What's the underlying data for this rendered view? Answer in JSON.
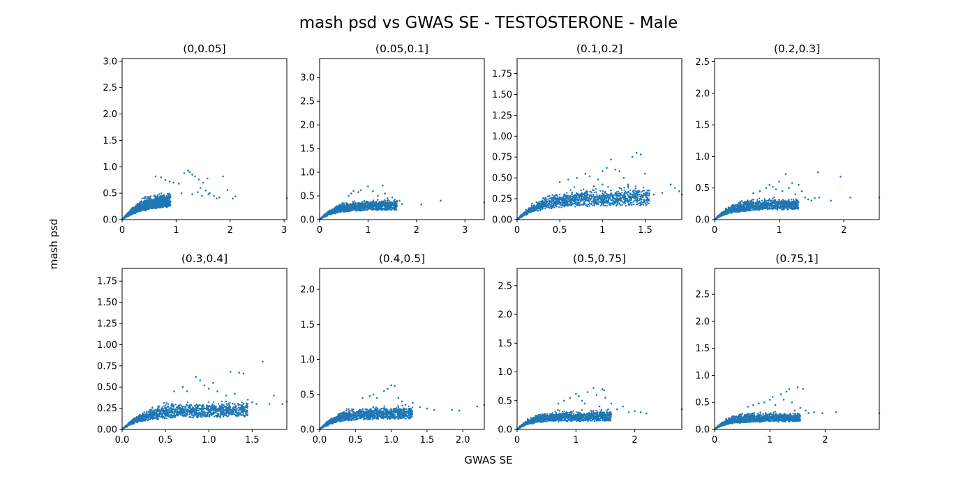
{
  "figure": {
    "title": "mash psd vs GWAS SE - TESTOSTERONE - Male",
    "xlabel": "GWAS SE",
    "ylabel": "mash psd"
  },
  "colors": {
    "points": "#1f77b4"
  },
  "chart_data": [
    {
      "type": "scatter",
      "title": "(0,0.05]",
      "xlim": [
        0,
        3.05
      ],
      "ylim": [
        0,
        3.05
      ],
      "xticks": [
        0,
        1,
        2,
        3
      ],
      "xtick_labels": [
        "0",
        "1",
        "2",
        "3"
      ],
      "yticks": [
        0,
        0.5,
        1,
        1.5,
        2,
        2.5,
        3
      ],
      "ytick_labels": [
        "0.0",
        "0.5",
        "1.0",
        "1.5",
        "2.0",
        "2.5",
        "3.0"
      ],
      "bulk": {
        "xmax": 0.9,
        "ysat": 0.48,
        "spread": 0.16
      },
      "points": [
        [
          0.62,
          0.82
        ],
        [
          0.72,
          0.8
        ],
        [
          0.8,
          0.75
        ],
        [
          0.88,
          0.72
        ],
        [
          0.95,
          0.7
        ],
        [
          1.05,
          0.68
        ],
        [
          1.15,
          0.88
        ],
        [
          1.22,
          0.93
        ],
        [
          1.25,
          0.9
        ],
        [
          1.3,
          0.85
        ],
        [
          1.35,
          0.82
        ],
        [
          1.42,
          0.76
        ],
        [
          1.5,
          0.7
        ],
        [
          1.58,
          0.78
        ],
        [
          1.45,
          0.6
        ],
        [
          1.55,
          0.55
        ],
        [
          1.62,
          0.5
        ],
        [
          1.7,
          0.45
        ],
        [
          1.8,
          0.42
        ],
        [
          1.87,
          0.82
        ],
        [
          1.95,
          0.56
        ],
        [
          2.05,
          0.4
        ],
        [
          2.1,
          0.44
        ],
        [
          3.05,
          0.41
        ],
        [
          1.1,
          0.5
        ],
        [
          1.3,
          0.48
        ],
        [
          1.48,
          0.45
        ],
        [
          1.4,
          0.52
        ],
        [
          1.6,
          0.48
        ],
        [
          1.75,
          0.4
        ]
      ]
    },
    {
      "type": "scatter",
      "title": "(0.05,0.1]",
      "xlim": [
        0,
        3.4
      ],
      "ylim": [
        0,
        3.4
      ],
      "xticks": [
        0,
        1,
        2,
        3
      ],
      "xtick_labels": [
        "0",
        "1",
        "2",
        "3"
      ],
      "yticks": [
        0,
        0.5,
        1,
        1.5,
        2,
        2.5,
        3
      ],
      "ytick_labels": [
        "0.0",
        "0.5",
        "1.0",
        "1.5",
        "2.0",
        "2.5",
        "3.0"
      ],
      "bulk": {
        "xmax": 1.6,
        "ysat": 0.36,
        "spread": 0.09
      },
      "points": [
        [
          0.6,
          0.5
        ],
        [
          0.65,
          0.55
        ],
        [
          0.7,
          0.6
        ],
        [
          0.8,
          0.58
        ],
        [
          0.85,
          0.62
        ],
        [
          1.0,
          0.7
        ],
        [
          1.1,
          0.6
        ],
        [
          1.2,
          0.5
        ],
        [
          1.3,
          0.72
        ],
        [
          1.35,
          0.55
        ],
        [
          1.5,
          0.47
        ],
        [
          1.65,
          0.4
        ],
        [
          1.7,
          0.33
        ],
        [
          2.1,
          0.32
        ],
        [
          2.5,
          0.4
        ],
        [
          3.4,
          0.36
        ],
        [
          1.2,
          0.42
        ],
        [
          1.4,
          0.45
        ],
        [
          1.6,
          0.38
        ]
      ]
    },
    {
      "type": "scatter",
      "title": "(0.1,0.2]",
      "xlim": [
        0,
        1.93
      ],
      "ylim": [
        0,
        1.93
      ],
      "xticks": [
        0,
        0.5,
        1,
        1.5
      ],
      "xtick_labels": [
        "0",
        "0.5",
        "1",
        "1.5"
      ],
      "yticks": [
        0,
        0.25,
        0.5,
        0.75,
        1,
        1.25,
        1.5,
        1.75
      ],
      "ytick_labels": [
        "0.00",
        "0.25",
        "0.50",
        "0.75",
        "1.00",
        "1.25",
        "1.50",
        "1.75"
      ],
      "bulk": {
        "xmax": 1.55,
        "ysat": 0.3,
        "spread": 0.12
      },
      "points": [
        [
          0.5,
          0.45
        ],
        [
          0.6,
          0.48
        ],
        [
          0.7,
          0.5
        ],
        [
          0.8,
          0.55
        ],
        [
          0.85,
          0.52
        ],
        [
          0.95,
          0.48
        ],
        [
          1.0,
          0.58
        ],
        [
          1.05,
          0.62
        ],
        [
          1.1,
          0.72
        ],
        [
          1.15,
          0.6
        ],
        [
          1.2,
          0.58
        ],
        [
          1.25,
          0.5
        ],
        [
          1.3,
          0.42
        ],
        [
          1.35,
          0.75
        ],
        [
          1.4,
          0.8
        ],
        [
          1.45,
          0.78
        ],
        [
          1.5,
          0.55
        ],
        [
          1.55,
          0.35
        ],
        [
          1.6,
          0.3
        ],
        [
          1.7,
          0.32
        ],
        [
          1.8,
          0.42
        ],
        [
          1.85,
          0.38
        ],
        [
          1.9,
          0.34
        ],
        [
          1.93,
          0.3
        ],
        [
          1.1,
          0.35
        ],
        [
          1.2,
          0.38
        ],
        [
          1.3,
          0.4
        ],
        [
          1.4,
          0.33
        ],
        [
          1.0,
          0.42
        ],
        [
          0.9,
          0.4
        ]
      ]
    },
    {
      "type": "scatter",
      "title": "(0.2,0.3]",
      "xlim": [
        0,
        2.55
      ],
      "ylim": [
        0,
        2.55
      ],
      "xticks": [
        0,
        1,
        2
      ],
      "xtick_labels": [
        "0",
        "1",
        "2"
      ],
      "yticks": [
        0,
        0.5,
        1,
        1.5,
        2,
        2.5
      ],
      "ytick_labels": [
        "0.0",
        "0.5",
        "1.0",
        "1.5",
        "2.0",
        "2.5"
      ],
      "bulk": {
        "xmax": 1.3,
        "ysat": 0.28,
        "spread": 0.1
      },
      "points": [
        [
          0.6,
          0.42
        ],
        [
          0.7,
          0.45
        ],
        [
          0.8,
          0.5
        ],
        [
          0.85,
          0.55
        ],
        [
          0.9,
          0.52
        ],
        [
          0.95,
          0.48
        ],
        [
          1.0,
          0.6
        ],
        [
          1.05,
          0.45
        ],
        [
          1.1,
          0.72
        ],
        [
          1.15,
          0.5
        ],
        [
          1.2,
          0.58
        ],
        [
          1.3,
          0.55
        ],
        [
          1.35,
          0.45
        ],
        [
          1.4,
          0.35
        ],
        [
          1.5,
          0.3
        ],
        [
          1.6,
          0.75
        ],
        [
          1.62,
          0.35
        ],
        [
          1.8,
          0.3
        ],
        [
          1.95,
          0.68
        ],
        [
          2.1,
          0.35
        ],
        [
          2.55,
          0.35
        ],
        [
          1.25,
          0.4
        ],
        [
          1.45,
          0.32
        ],
        [
          1.55,
          0.34
        ]
      ]
    },
    {
      "type": "scatter",
      "title": "(0.3,0.4]",
      "xlim": [
        0,
        1.9
      ],
      "ylim": [
        0,
        1.9
      ],
      "xticks": [
        0,
        0.5,
        1,
        1.5
      ],
      "xtick_labels": [
        "0.0",
        "0.5",
        "1.0",
        "1.5"
      ],
      "yticks": [
        0,
        0.25,
        0.5,
        0.75,
        1,
        1.25,
        1.5,
        1.75
      ],
      "ytick_labels": [
        "0.00",
        "0.25",
        "0.50",
        "0.75",
        "1.00",
        "1.25",
        "1.50",
        "1.75"
      ],
      "bulk": {
        "xmax": 1.45,
        "ysat": 0.26,
        "spread": 0.1
      },
      "points": [
        [
          0.6,
          0.45
        ],
        [
          0.7,
          0.5
        ],
        [
          0.75,
          0.45
        ],
        [
          0.85,
          0.62
        ],
        [
          0.9,
          0.58
        ],
        [
          0.95,
          0.52
        ],
        [
          1.0,
          0.48
        ],
        [
          1.05,
          0.55
        ],
        [
          1.1,
          0.45
        ],
        [
          1.2,
          0.4
        ],
        [
          1.25,
          0.68
        ],
        [
          1.3,
          0.42
        ],
        [
          1.35,
          0.67
        ],
        [
          1.4,
          0.66
        ],
        [
          1.45,
          0.35
        ],
        [
          1.5,
          0.32
        ],
        [
          1.55,
          0.3
        ],
        [
          1.62,
          0.8
        ],
        [
          1.7,
          0.3
        ],
        [
          1.75,
          0.4
        ],
        [
          1.85,
          0.3
        ],
        [
          1.9,
          0.33
        ],
        [
          1.2,
          0.33
        ],
        [
          1.4,
          0.3
        ]
      ]
    },
    {
      "type": "scatter",
      "title": "(0.4,0.5]",
      "xlim": [
        0,
        2.3
      ],
      "ylim": [
        0,
        2.3
      ],
      "xticks": [
        0,
        0.5,
        1,
        1.5,
        2
      ],
      "xtick_labels": [
        "0.0",
        "0.5",
        "1.0",
        "1.5",
        "2.0"
      ],
      "yticks": [
        0,
        0.5,
        1,
        1.5,
        2
      ],
      "ytick_labels": [
        "0.0",
        "0.5",
        "1.0",
        "1.5",
        "2.0"
      ],
      "bulk": {
        "xmax": 1.3,
        "ysat": 0.27,
        "spread": 0.1
      },
      "points": [
        [
          0.6,
          0.45
        ],
        [
          0.7,
          0.48
        ],
        [
          0.75,
          0.5
        ],
        [
          0.8,
          0.45
        ],
        [
          0.9,
          0.55
        ],
        [
          0.95,
          0.58
        ],
        [
          1.0,
          0.63
        ],
        [
          1.05,
          0.62
        ],
        [
          1.1,
          0.45
        ],
        [
          1.15,
          0.4
        ],
        [
          1.2,
          0.35
        ],
        [
          1.3,
          0.38
        ],
        [
          1.4,
          0.32
        ],
        [
          1.5,
          0.3
        ],
        [
          1.6,
          0.28
        ],
        [
          1.85,
          0.28
        ],
        [
          1.95,
          0.27
        ],
        [
          2.2,
          0.33
        ],
        [
          2.3,
          0.35
        ],
        [
          1.25,
          0.28
        ]
      ]
    },
    {
      "type": "scatter",
      "title": "(0.5,0.75]",
      "xlim": [
        0,
        2.8
      ],
      "ylim": [
        0,
        2.8
      ],
      "xticks": [
        0,
        1,
        2
      ],
      "xtick_labels": [
        "0",
        "1",
        "2"
      ],
      "yticks": [
        0,
        0.5,
        1,
        1.5,
        2,
        2.5
      ],
      "ytick_labels": [
        "0.0",
        "0.5",
        "1.0",
        "1.5",
        "2.0",
        "2.5"
      ],
      "bulk": {
        "xmax": 1.6,
        "ysat": 0.26,
        "spread": 0.1
      },
      "points": [
        [
          0.7,
          0.45
        ],
        [
          0.8,
          0.5
        ],
        [
          0.9,
          0.55
        ],
        [
          1.0,
          0.62
        ],
        [
          1.05,
          0.58
        ],
        [
          1.1,
          0.5
        ],
        [
          1.15,
          0.45
        ],
        [
          1.2,
          0.65
        ],
        [
          1.3,
          0.72
        ],
        [
          1.35,
          0.6
        ],
        [
          1.45,
          0.7
        ],
        [
          1.48,
          0.68
        ],
        [
          1.5,
          0.55
        ],
        [
          1.6,
          0.45
        ],
        [
          1.7,
          0.35
        ],
        [
          1.8,
          0.4
        ],
        [
          1.9,
          0.3
        ],
        [
          2.0,
          0.32
        ],
        [
          2.1,
          0.3
        ],
        [
          2.2,
          0.28
        ],
        [
          2.8,
          0.35
        ],
        [
          1.4,
          0.4
        ],
        [
          1.55,
          0.35
        ]
      ]
    },
    {
      "type": "scatter",
      "title": "(0.75,1]",
      "xlim": [
        0,
        2.98
      ],
      "ylim": [
        0,
        2.98
      ],
      "xticks": [
        0,
        1,
        2
      ],
      "xtick_labels": [
        "0",
        "1",
        "2"
      ],
      "yticks": [
        0,
        0.5,
        1,
        1.5,
        2,
        2.5
      ],
      "ytick_labels": [
        "0.0",
        "0.5",
        "1.0",
        "1.5",
        "2.0",
        "2.5"
      ],
      "bulk": {
        "xmax": 1.55,
        "ysat": 0.25,
        "spread": 0.1
      },
      "points": [
        [
          0.6,
          0.42
        ],
        [
          0.7,
          0.45
        ],
        [
          0.8,
          0.48
        ],
        [
          0.9,
          0.5
        ],
        [
          1.0,
          0.55
        ],
        [
          1.05,
          0.6
        ],
        [
          1.1,
          0.45
        ],
        [
          1.2,
          0.65
        ],
        [
          1.25,
          0.55
        ],
        [
          1.3,
          0.7
        ],
        [
          1.35,
          0.75
        ],
        [
          1.4,
          0.5
        ],
        [
          1.5,
          0.78
        ],
        [
          1.55,
          0.4
        ],
        [
          1.6,
          0.75
        ],
        [
          1.65,
          0.35
        ],
        [
          1.7,
          0.3
        ],
        [
          1.8,
          0.32
        ],
        [
          1.95,
          0.3
        ],
        [
          2.2,
          0.32
        ],
        [
          2.98,
          0.3
        ],
        [
          1.45,
          0.35
        ]
      ]
    }
  ]
}
